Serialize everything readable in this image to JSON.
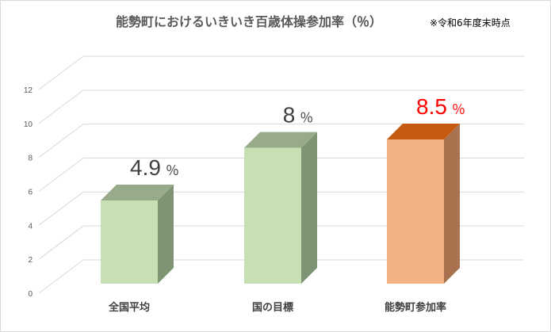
{
  "chart_data": {
    "type": "bar",
    "title": "能勢町におけるいきいき百歳体操参加率（％）",
    "note": "※令和6年度末時点",
    "categories": [
      "全国平均",
      "国の目標",
      "能勢町参加率"
    ],
    "values": [
      4.9,
      8,
      8.5
    ],
    "value_labels": [
      "4.9",
      "8",
      "8.5"
    ],
    "value_unit": "％",
    "ylim": [
      0,
      12
    ],
    "yticks": [
      "0",
      "2",
      "4",
      "6",
      "8",
      "10",
      "12"
    ],
    "grid": true,
    "legend": "none",
    "colors": {
      "normal_front": "#c6e0b4",
      "normal_side": "#7f9473",
      "normal_top": "#97ab8a",
      "highlight_front": "#f4b183",
      "highlight_side": "#a9734f",
      "highlight_top": "#c55a11",
      "label_normal": "#404040",
      "label_highlight": "#ff0000",
      "grid": "#d9d9d9"
    },
    "highlight_index": 2
  }
}
